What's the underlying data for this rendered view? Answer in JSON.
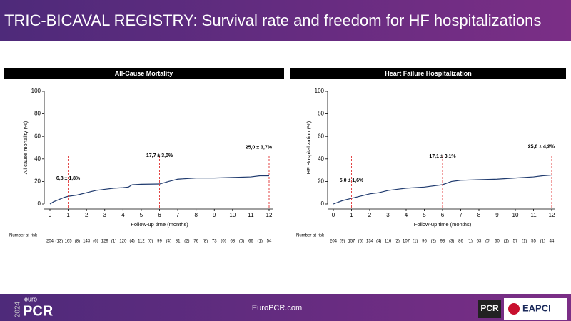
{
  "header": {
    "title": "TRIC-BICAVAL REGISTRY: Survival rate and freedom for HF hospitalizations"
  },
  "footer": {
    "year": "2024",
    "brand_small": "euro",
    "brand": "PCR",
    "url": "EuroPCR.com",
    "logo1": "PCR",
    "logo2": "EAPCI"
  },
  "chart_data": [
    {
      "type": "line",
      "title": "All-Cause Mortality",
      "x_label": "Follow-up time (months)",
      "y_label": "All cause mortality (%)",
      "x": [
        0,
        0.2,
        0.5,
        0.8,
        1,
        1.5,
        2,
        2.5,
        3,
        3.5,
        4,
        4.3,
        4.5,
        5,
        6,
        6.3,
        6.5,
        7,
        8,
        9,
        10,
        11,
        11.5,
        12
      ],
      "values": [
        0,
        2,
        4,
        6,
        6.8,
        8,
        10,
        12,
        13,
        14,
        14.5,
        15,
        17,
        17.5,
        17.7,
        19,
        20,
        22,
        23,
        23,
        23.5,
        24,
        25,
        25
      ],
      "color": "#1f3a6e",
      "xlim": [
        0,
        12
      ],
      "ylim": [
        0,
        100
      ],
      "xticks": [
        0,
        1,
        2,
        3,
        4,
        5,
        6,
        7,
        8,
        9,
        10,
        11,
        12
      ],
      "yticks": [
        0,
        20,
        40,
        60,
        80,
        100
      ],
      "annotations": [
        {
          "x": 1,
          "y": 6.8,
          "label": "6,8 ± 1,8%"
        },
        {
          "x": 6,
          "y": 17.7,
          "label": "17,7 ± 3,0%"
        },
        {
          "x": 12,
          "y": 25,
          "label": "25,0 ± 3,7%"
        }
      ],
      "risk_label": "Number at risk",
      "at_risk": [
        204,
        165,
        143,
        129,
        120,
        112,
        99,
        81,
        76,
        73,
        68,
        66,
        54
      ],
      "censored": [
        "(13)",
        "(8)",
        "(6)",
        "(1)",
        "(4)",
        "(0)",
        "(4)",
        "(2)",
        "(8)",
        "(0)",
        "(0)",
        "(1)"
      ]
    },
    {
      "type": "line",
      "title": "Heart Failure Hospitalization",
      "x_label": "Follow-up time (months)",
      "y_label": "HF Hospitalization (%)",
      "x": [
        0,
        0.5,
        1,
        1.5,
        2,
        2.5,
        3,
        3.5,
        4,
        5,
        6,
        6.5,
        7,
        8,
        9,
        10,
        11,
        11.5,
        12
      ],
      "values": [
        0,
        3,
        5,
        7,
        9,
        10,
        12,
        13,
        14,
        15,
        17.1,
        20,
        21,
        21.5,
        22,
        23,
        24,
        25,
        25.6
      ],
      "color": "#1f3a6e",
      "xlim": [
        0,
        12
      ],
      "ylim": [
        0,
        100
      ],
      "xticks": [
        0,
        1,
        2,
        3,
        4,
        5,
        6,
        7,
        8,
        9,
        10,
        11,
        12
      ],
      "yticks": [
        0,
        20,
        40,
        60,
        80,
        100
      ],
      "annotations": [
        {
          "x": 1,
          "y": 5,
          "label": "5,0 ± 1,6%"
        },
        {
          "x": 6,
          "y": 17.1,
          "label": "17,1 ± 3,1%"
        },
        {
          "x": 12,
          "y": 25.6,
          "label": "25,6 ± 4,2%"
        }
      ],
      "risk_label": "Number at risk",
      "at_risk": [
        204,
        157,
        134,
        116,
        107,
        96,
        93,
        86,
        63,
        60,
        57,
        55,
        44
      ],
      "censored": [
        "(9)",
        "(6)",
        "(4)",
        "(2)",
        "(1)",
        "(2)",
        "(3)",
        "(1)",
        "(0)",
        "(1)",
        "(1)",
        "(1)"
      ]
    }
  ]
}
